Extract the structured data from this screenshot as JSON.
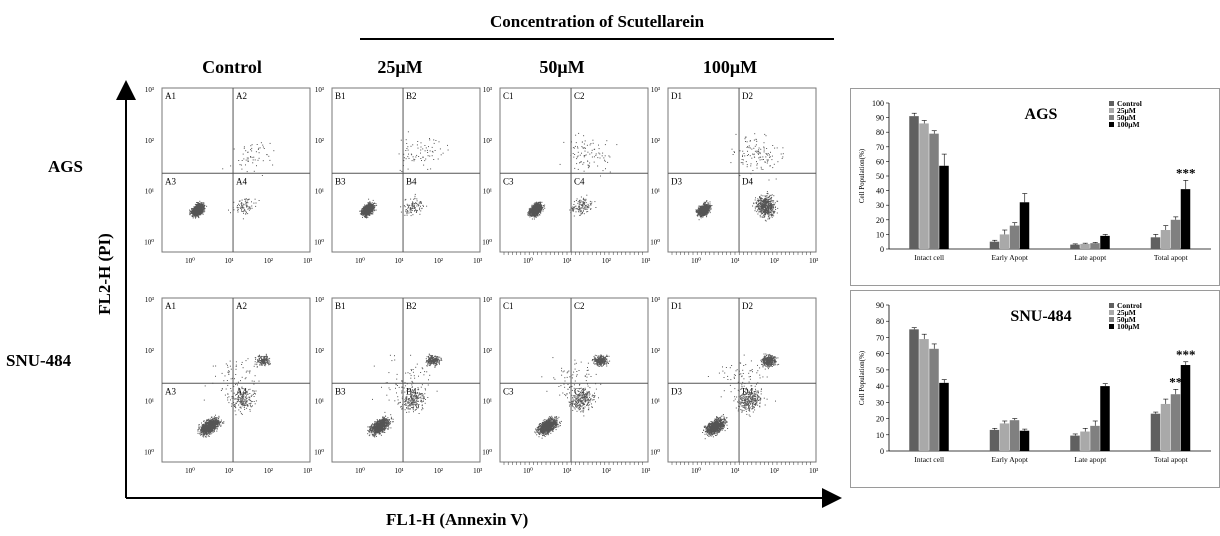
{
  "title": "Concentration of Scutellarein",
  "columns": [
    "Control",
    "25μM",
    "50μM",
    "100μM"
  ],
  "rows": [
    "AGS",
    "SNU-484"
  ],
  "y_axis_title": "FL2-H (PI)",
  "x_axis_title": "FL1-H (Annexin V)",
  "scatter_ticks_y": [
    "10³",
    "10²",
    "10¹",
    "10⁰"
  ],
  "scatter_ticks_x": [
    "10⁰",
    "10¹",
    "10²",
    "10³"
  ],
  "quadrant_labels": [
    [
      "A1",
      "A2",
      "A3",
      "A4"
    ],
    [
      "B1",
      "B2",
      "B3",
      "B4"
    ],
    [
      "C1",
      "C2",
      "C3",
      "C4"
    ],
    [
      "D1",
      "D2",
      "D3",
      "D4"
    ]
  ],
  "colors": {
    "control": "#606060",
    "c25": "#a9a9a9",
    "c50": "#808080",
    "c100": "#000000",
    "dots": "#555555"
  },
  "chart_data": [
    {
      "type": "bar",
      "title": "AGS",
      "ylabel": "Cell Population(%)",
      "ylim": [
        0,
        100
      ],
      "yticks": [
        0,
        10,
        20,
        30,
        40,
        50,
        60,
        70,
        80,
        90,
        100
      ],
      "categories": [
        "Intact cell",
        "Early Apopt",
        "Late apopt",
        "Total apopt"
      ],
      "legend": [
        "Control",
        "25μM",
        "50μM",
        "100μM"
      ],
      "legend_position": "top-right",
      "series": [
        {
          "name": "Control",
          "values": [
            91,
            5,
            3,
            8
          ],
          "errors": [
            2,
            1,
            0.5,
            2
          ]
        },
        {
          "name": "25μM",
          "values": [
            86,
            10,
            3.5,
            13
          ],
          "errors": [
            2,
            3,
            0.5,
            3
          ]
        },
        {
          "name": "50μM",
          "values": [
            79,
            16,
            4,
            20
          ],
          "errors": [
            2,
            2,
            0.5,
            2
          ]
        },
        {
          "name": "100μM",
          "values": [
            57,
            32,
            9,
            41
          ],
          "errors": [
            8,
            6,
            1,
            6
          ]
        }
      ],
      "annotations": [
        {
          "category": "Total apopt",
          "series": "100μM",
          "text": "***"
        }
      ]
    },
    {
      "type": "bar",
      "title": "SNU-484",
      "ylabel": "Cell Population(%)",
      "ylim": [
        0,
        90
      ],
      "yticks": [
        0,
        10,
        20,
        30,
        40,
        50,
        60,
        70,
        80,
        90
      ],
      "categories": [
        "Intact cell",
        "Early Apopt",
        "Late apopt",
        "Total apopt"
      ],
      "legend": [
        "Control",
        "25μM",
        "50μM",
        "100μM"
      ],
      "legend_position": "top-right",
      "series": [
        {
          "name": "Control",
          "values": [
            75,
            13,
            9.5,
            23
          ],
          "errors": [
            1,
            1,
            1,
            1
          ]
        },
        {
          "name": "25μM",
          "values": [
            69,
            17,
            12,
            29
          ],
          "errors": [
            3,
            1.5,
            2,
            3
          ]
        },
        {
          "name": "50μM",
          "values": [
            63,
            19,
            15.5,
            35
          ],
          "errors": [
            3,
            1,
            3,
            3
          ]
        },
        {
          "name": "100μM",
          "values": [
            42,
            12.5,
            40,
            53
          ],
          "errors": [
            2,
            1,
            1.5,
            2
          ]
        }
      ],
      "annotations": [
        {
          "category": "Total apopt",
          "series": "50μM",
          "text": "**"
        },
        {
          "category": "Total apopt",
          "series": "100μM",
          "text": "***"
        }
      ]
    }
  ]
}
